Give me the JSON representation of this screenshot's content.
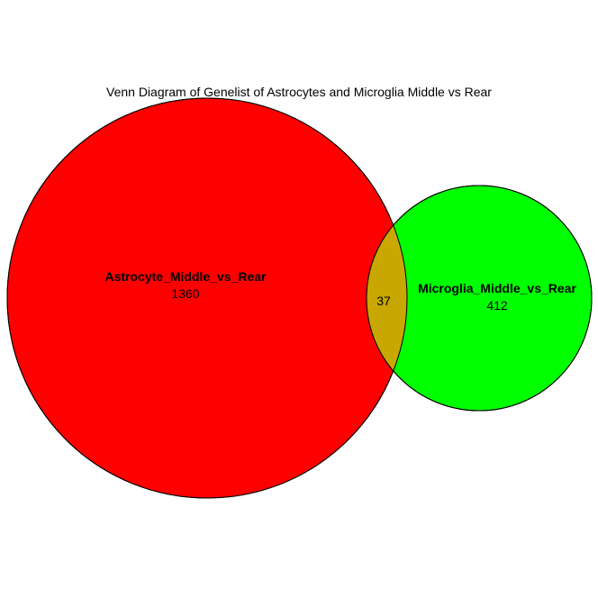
{
  "title": "Venn Diagram of Genelist of Astrocytes and Microglia Middle vs Rear",
  "sets": [
    {
      "name": "Astrocyte_Middle_vs_Rear",
      "count": "1360",
      "color": "#ff0000"
    },
    {
      "name": "Microglia_Middle_vs_Rear",
      "count": "412",
      "color": "#00ff00"
    }
  ],
  "intersection": {
    "count": "37",
    "color": "#c8a800"
  },
  "outline_color": "#000000"
}
